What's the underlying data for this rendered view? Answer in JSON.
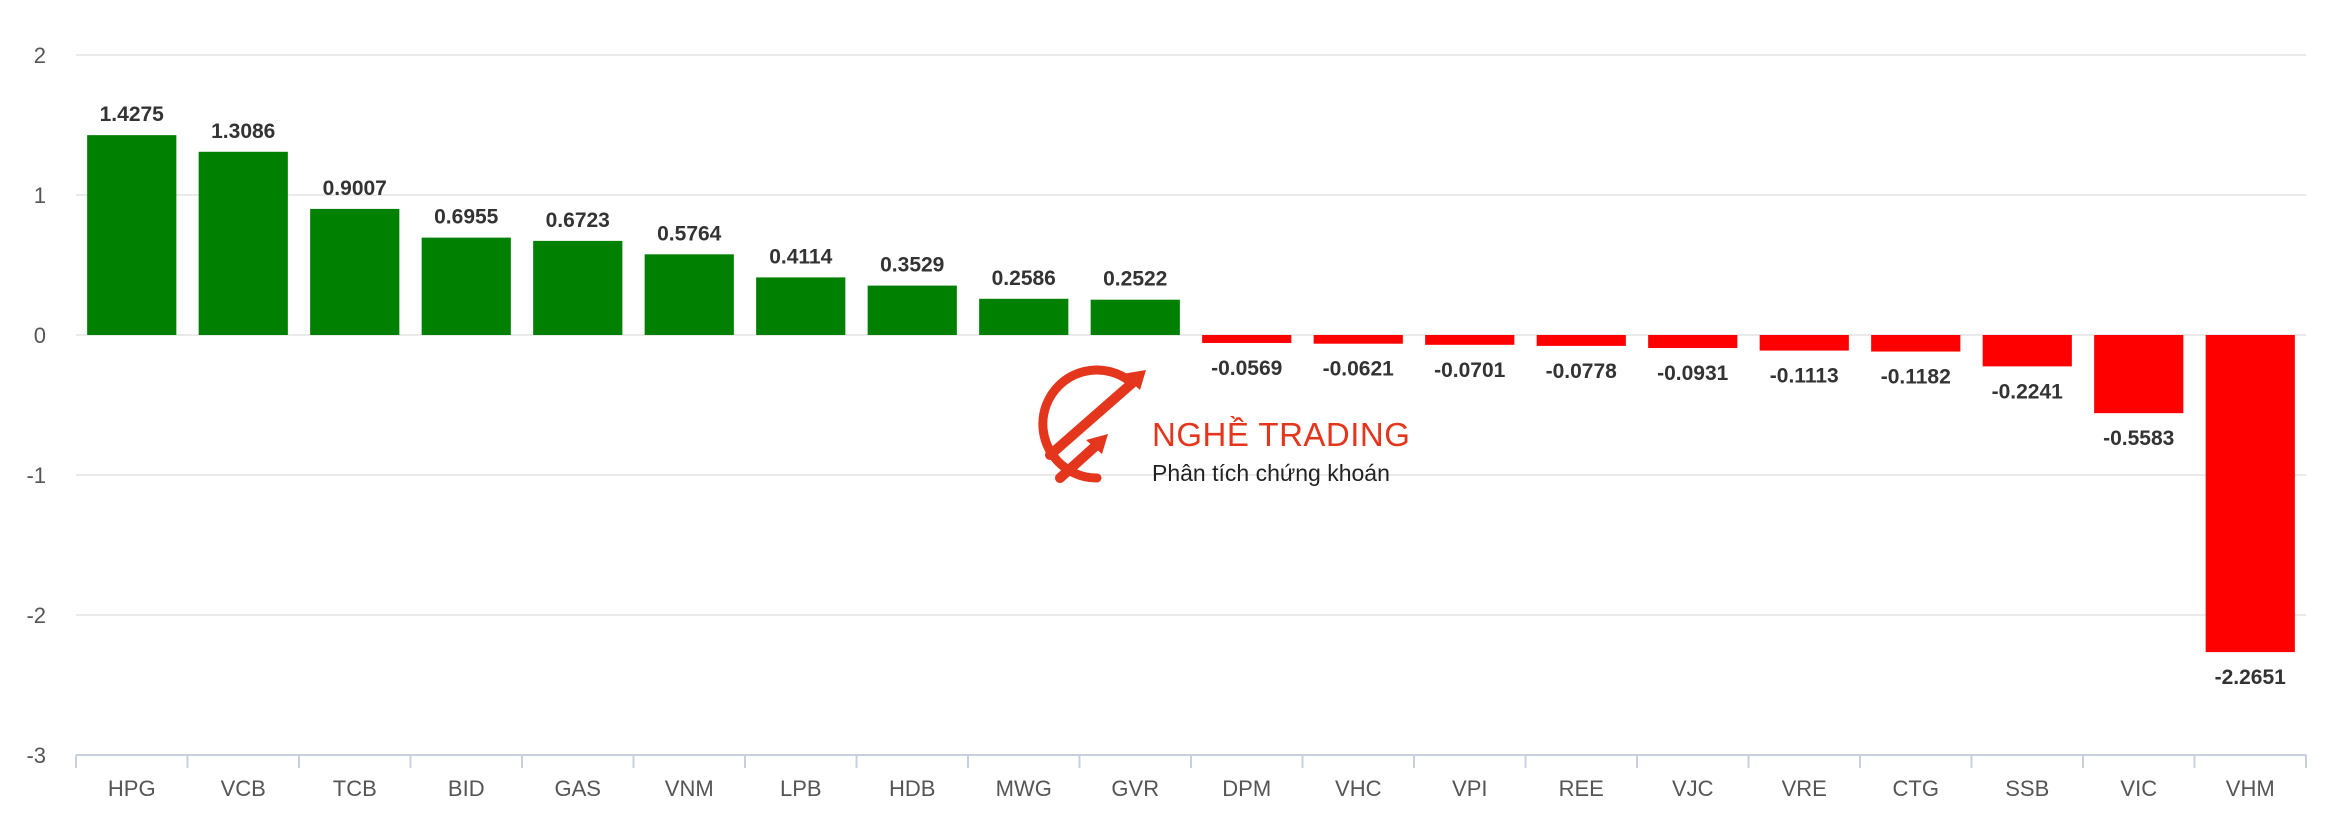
{
  "chart_data": {
    "type": "bar",
    "categories": [
      "HPG",
      "VCB",
      "TCB",
      "BID",
      "GAS",
      "VNM",
      "LPB",
      "HDB",
      "MWG",
      "GVR",
      "DPM",
      "VHC",
      "VPI",
      "REE",
      "VJC",
      "VRE",
      "CTG",
      "SSB",
      "VIC",
      "VHM"
    ],
    "values": [
      1.4275,
      1.3086,
      0.9007,
      0.6955,
      0.6723,
      0.5764,
      0.4114,
      0.3529,
      0.2586,
      0.2522,
      -0.0569,
      -0.0621,
      -0.0701,
      -0.0778,
      -0.0931,
      -0.1113,
      -0.1182,
      -0.2241,
      -0.5583,
      -2.2651
    ],
    "data_labels": [
      "1.4275",
      "1.3086",
      "0.9007",
      "0.6955",
      "0.6723",
      "0.5764",
      "0.4114",
      "0.3529",
      "0.2586",
      "0.2522",
      "-0.0569",
      "-0.0621",
      "-0.0701",
      "-0.0778",
      "-0.0931",
      "-0.1113",
      "-0.1182",
      "-0.2241",
      "-0.5583",
      "-2.2651"
    ],
    "y_ticks": [
      2,
      1,
      0,
      -1,
      -2,
      -3
    ],
    "y_tick_labels": [
      "2",
      "1",
      "0",
      "-1",
      "-2",
      "-3"
    ],
    "ylim": [
      -3,
      2
    ],
    "grid": true,
    "legend": "none",
    "colors": {
      "positive": "#008000",
      "negative": "#ff0000"
    }
  },
  "watermark": {
    "title": "NGHỀ TRADING",
    "subtitle": "Phân tích chứng khoán",
    "color": "#e4361c",
    "icon": "trading-arrows-logo-icon"
  }
}
